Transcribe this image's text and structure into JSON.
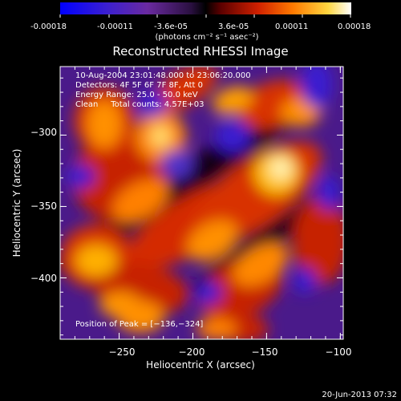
{
  "colorbar": {
    "tick_labels": [
      "-0.00018",
      "-0.00011",
      "-3.6e-05",
      "3.6e-05",
      "0.00011",
      "0.00018"
    ],
    "unit_label": "(photons cm⁻² s⁻¹ asec⁻²)",
    "range": [
      -0.00018,
      0.00018
    ]
  },
  "chart_data": {
    "type": "heatmap",
    "title": "Reconstructed RHESSI Image",
    "xlabel": "Heliocentric X (arcsec)",
    "ylabel": "Heliocentric Y (arcsec)",
    "xlim": [
      -290,
      -98
    ],
    "ylim": [
      -443,
      -252
    ],
    "x_ticks": [
      -250,
      -200,
      -150,
      -100
    ],
    "y_ticks": [
      -300,
      -350,
      -400
    ],
    "x_tick_labels": [
      "−250",
      "−200",
      "−150",
      "−100"
    ],
    "y_tick_labels": [
      "−300",
      "−350",
      "−400"
    ],
    "peak_position": [
      -136,
      -324
    ],
    "annotations": [
      "10-Aug-2004 23:01:48.000 to 23:06:20.000",
      "Detectors: 4F 5F 6F 7F 8F, Att 0",
      "Energy Range: 25.0 - 50.0 keV",
      "Clean     Total counts: 4.57E+03"
    ],
    "peak_label": "Position of Peak = [−136,−324]"
  },
  "footer": {
    "timestamp": "20-Jun-2013 07:32"
  }
}
